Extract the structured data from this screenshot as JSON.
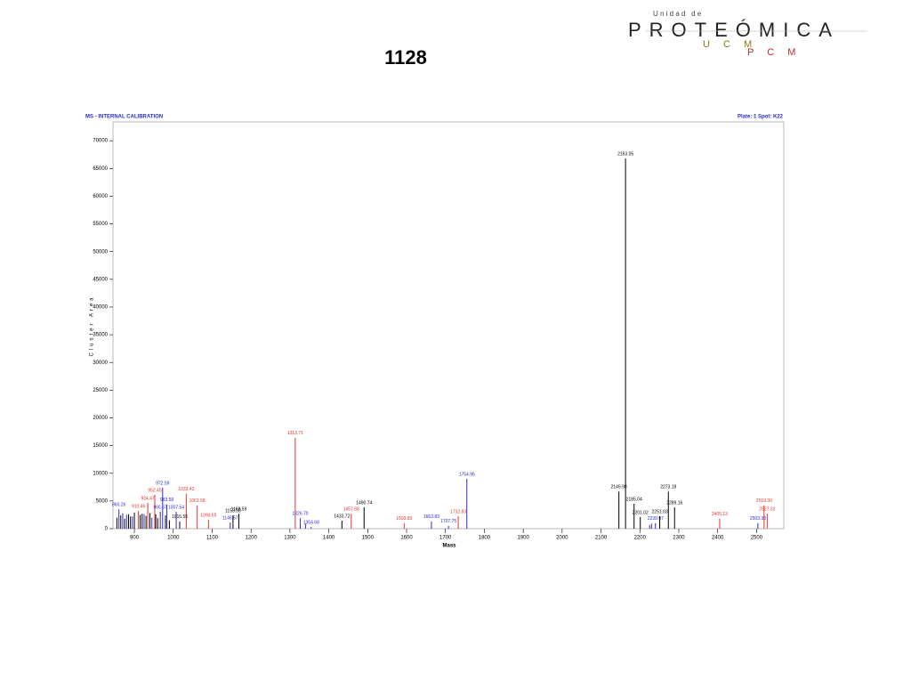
{
  "logo": {
    "top": "U n i d a d   d e",
    "main": "PROTEÓMICA",
    "sub1": "U C M",
    "sub2": "P C M"
  },
  "chart_data": {
    "type": "spectrum",
    "title": "1128",
    "subtitle_left": "MS - INTERNAL CALIBRATION",
    "subtitle_right": "Plate: 1 Spot: K22",
    "x_label": "Mass",
    "y_label": "Cluster Area",
    "xlim": [
      845,
      2570
    ],
    "ylim": [
      0,
      73400
    ],
    "xticks": [
      900,
      1000,
      1100,
      1200,
      1300,
      1400,
      1500,
      1600,
      1700,
      1800,
      1900,
      2000,
      2100,
      2200,
      2300,
      2400,
      2500
    ],
    "yticks": [
      0,
      5000,
      10000,
      15000,
      20000,
      25000,
      30000,
      35000,
      40000,
      45000,
      50000,
      55000,
      60000,
      65000,
      70000
    ],
    "series": [
      {
        "color": "#e8322e",
        "x": [
          910.46,
          934.47,
          952.45,
          1033.42,
          1061.58,
          1090.55,
          1313.71,
          1457.68,
          1593.83,
          1732.83,
          2405.13,
          2519.3,
          2527.32
        ],
        "values": [
          3200,
          4650,
          6100,
          6300,
          4200,
          1600,
          16400,
          2700,
          1000,
          2250,
          1800,
          4200,
          2700
        ],
        "value_labels": [
          "910.46",
          "934.47",
          "952.45",
          "1033.42",
          "1061.58",
          "1090.55",
          "1313.71",
          "1457.68",
          "1593.83",
          "1732.83",
          "2405.13",
          "2519.30",
          "2527.32"
        ]
      },
      {
        "color": "#2a2ad0",
        "x": [
          860.26,
          966.57,
          972.59,
          983.58,
          1007.54,
          1146.57,
          1326.7,
          1354.68,
          1663.83,
          1707.75,
          1754.95,
          2239.97,
          2503.38,
          870,
          880,
          895,
          925,
          945,
          1340,
          2225,
          2230
        ],
        "values": [
          3500,
          3050,
          7400,
          4350,
          3050,
          1100,
          1900,
          300,
          1300,
          500,
          9000,
          1000,
          1000,
          2800,
          2500,
          2200,
          2600,
          2000,
          900,
          700,
          900
        ],
        "value_labels": [
          "860.26",
          "966.57",
          "972.59",
          "983.58",
          "1007.54",
          "1146.57",
          "1326.70",
          "1354.68",
          "1663.83",
          "1707.75",
          "1754.95",
          "2239.97",
          "2503.38",
          null,
          null,
          null,
          null,
          null,
          null,
          null,
          null
        ]
      },
      {
        "color": "#000000",
        "x": [
          1016.55,
          1153.58,
          1168.59,
          1433.72,
          1490.74,
          2145.98,
          2163.05,
          2185.04,
          2201.02,
          2251.03,
          2273.18,
          2289.16,
          855,
          865,
          875,
          885,
          890,
          900,
          915,
          920,
          930,
          940,
          955,
          960,
          980,
          990
        ],
        "values": [
          1300,
          2400,
          2700,
          1450,
          3850,
          6700,
          66800,
          4500,
          2100,
          2250,
          6700,
          3850,
          2000,
          2400,
          1800,
          2600,
          2200,
          2900,
          2500,
          2700,
          2300,
          2800,
          2600,
          1900,
          2400,
          1500
        ],
        "value_labels": [
          "1016.55",
          "1153.58",
          "1168.59",
          "1433.72",
          "1490.74",
          "2145.98",
          "2163.05",
          "2185.04",
          "2201.02",
          "2251.03",
          "2273.18",
          "2289.16",
          null,
          null,
          null,
          null,
          null,
          null,
          null,
          null,
          null,
          null,
          null,
          null,
          null,
          null
        ]
      }
    ]
  }
}
